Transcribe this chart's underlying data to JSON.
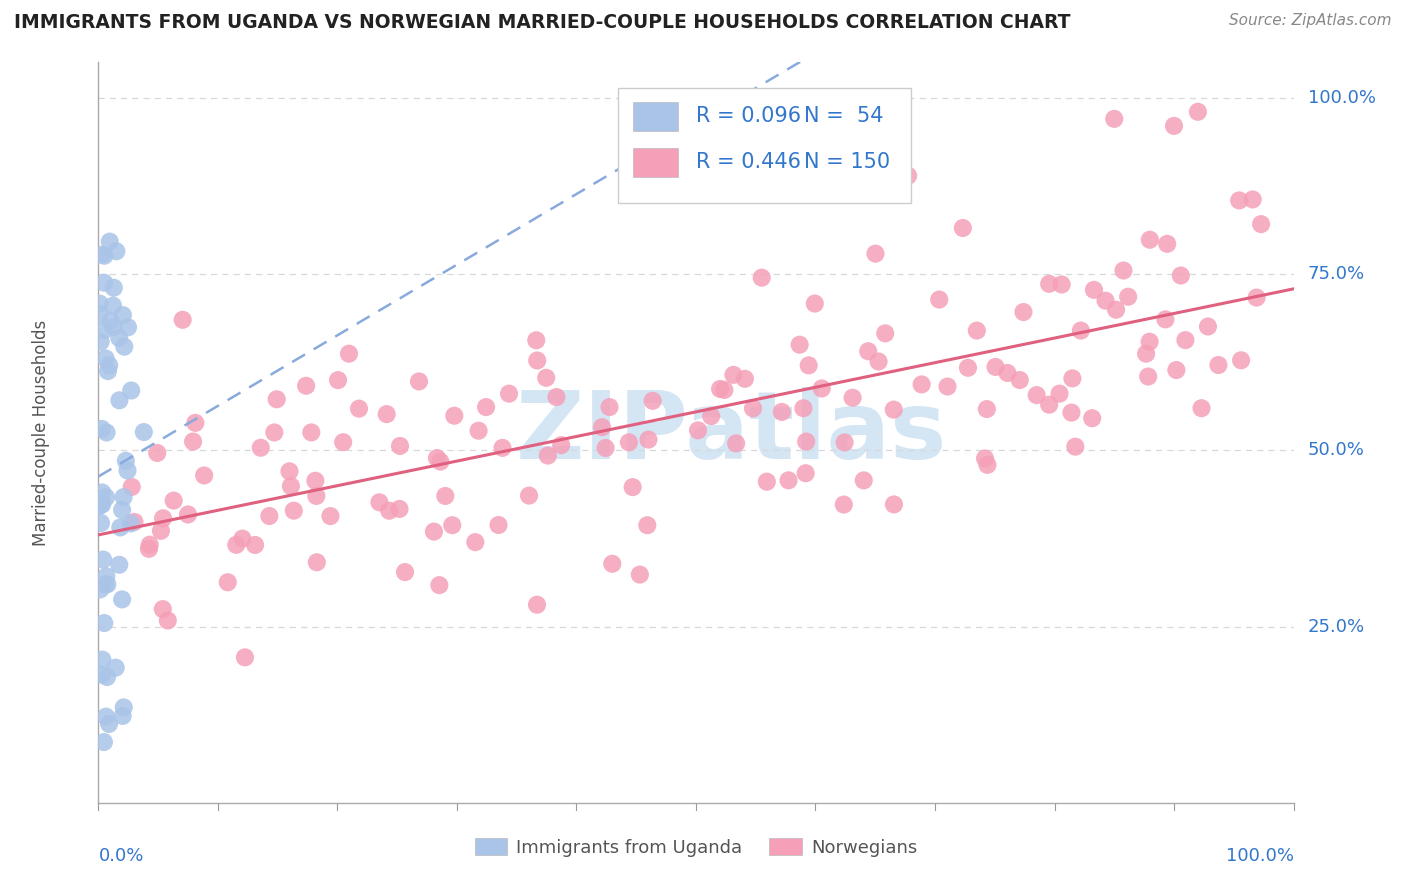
{
  "title": "IMMIGRANTS FROM UGANDA VS NORWEGIAN MARRIED-COUPLE HOUSEHOLDS CORRELATION CHART",
  "source": "Source: ZipAtlas.com",
  "ylabel": "Married-couple Households",
  "legend_blue_r": "R = 0.096",
  "legend_blue_n": "N =  54",
  "legend_pink_r": "R = 0.446",
  "legend_pink_n": "N = 150",
  "blue_color": "#aac4e8",
  "pink_color": "#f5a0b8",
  "blue_line_color": "#6090c8",
  "pink_line_color": "#e0607a",
  "legend_text_color": "#3377cc",
  "title_color": "#222222",
  "watermark": "ZIPatlas",
  "background_color": "#ffffff",
  "grid_color": "#dddddd",
  "xlim": [
    0.0,
    1.0
  ],
  "ylim": [
    0.0,
    1.05
  ]
}
